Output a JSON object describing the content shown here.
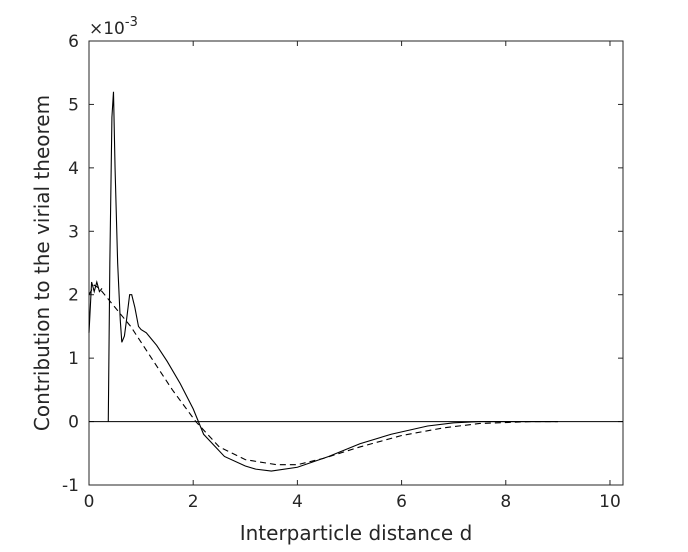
{
  "chart_data": {
    "type": "line",
    "x_label": "Interparticle distance d",
    "y_label": "Contribution to the virial theorem",
    "y_multiplier": {
      "base": "×10",
      "exponent": "-3"
    },
    "xlim": [
      0,
      10.25
    ],
    "ylim": [
      -1,
      6
    ],
    "xticks": [
      0,
      2,
      4,
      6,
      8,
      10
    ],
    "yticks": [
      -1,
      0,
      1,
      2,
      3,
      4,
      5,
      6
    ],
    "hlines": [
      0
    ],
    "series": [
      {
        "color": "#000000",
        "dash": "solid",
        "x": [
          0,
          0.05,
          0.1,
          0.15,
          0.2,
          0.25,
          null,
          0.37,
          0.4,
          0.44,
          0.47,
          0.5,
          0.55,
          0.6,
          0.63,
          0.68,
          0.72,
          0.78,
          0.82,
          0.88,
          0.95,
          1.0,
          1.1,
          1.2,
          1.3,
          1.5,
          1.75,
          2.0,
          2.2,
          2.6,
          3.0,
          3.2,
          3.5,
          4.0,
          4.6,
          5.2,
          5.8,
          6.5,
          7.0,
          7.5,
          8.0,
          9.0
        ],
        "values": [
          1.4,
          2.2,
          2.05,
          2.2,
          2.05,
          2.1,
          null,
          0,
          2.5,
          4.8,
          5.2,
          4.0,
          2.5,
          1.6,
          1.25,
          1.35,
          1.6,
          2.0,
          2.0,
          1.8,
          1.5,
          1.45,
          1.4,
          1.3,
          1.2,
          0.95,
          0.6,
          0.2,
          -0.2,
          -0.55,
          -0.7,
          -0.75,
          -0.78,
          -0.72,
          -0.55,
          -0.35,
          -0.2,
          -0.07,
          -0.02,
          0,
          0,
          0
        ]
      },
      {
        "color": "#000000",
        "dash": "dashed",
        "x": [
          0,
          0.1,
          0.2,
          0.3,
          0.5,
          0.8,
          1.2,
          1.6,
          2.05,
          2.5,
          3.0,
          3.6,
          4.0,
          4.5,
          5.2,
          6.0,
          6.8,
          7.5,
          8.5,
          9.0
        ],
        "values": [
          2.0,
          2.15,
          2.1,
          2.0,
          1.8,
          1.5,
          1.0,
          0.5,
          0,
          -0.4,
          -0.6,
          -0.68,
          -0.68,
          -0.58,
          -0.4,
          -0.22,
          -0.1,
          -0.03,
          0,
          0
        ]
      }
    ]
  }
}
